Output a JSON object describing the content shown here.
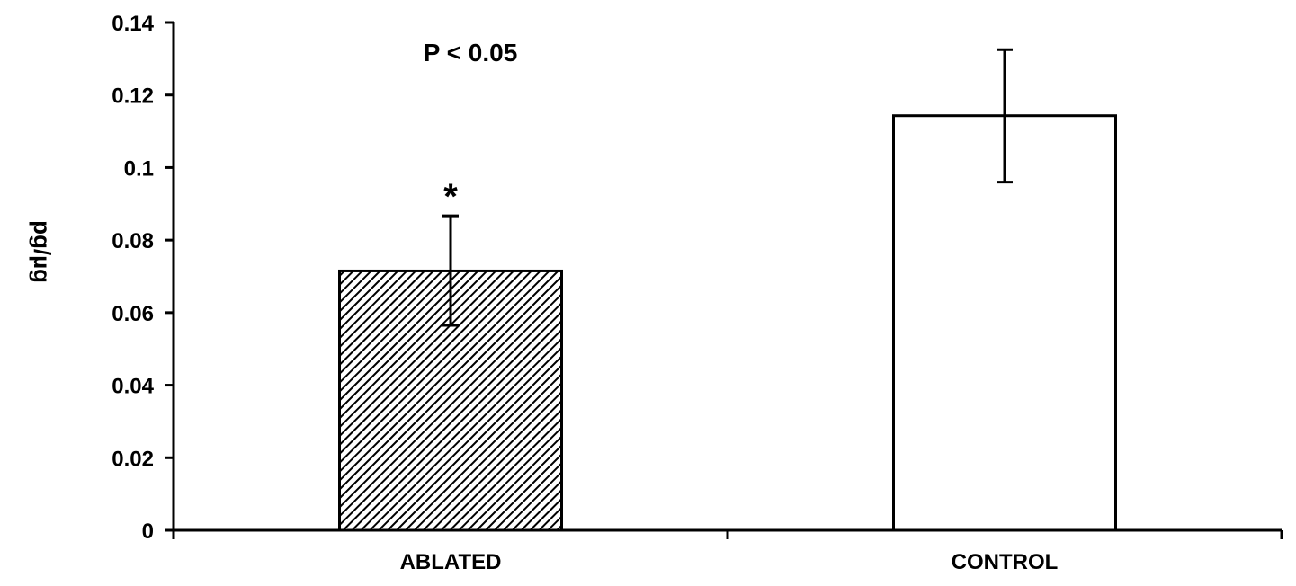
{
  "chart_data": {
    "type": "bar",
    "categories": [
      "ABLATED",
      "CONTROL"
    ],
    "values": [
      0.0715,
      0.1143
    ],
    "error_upper": [
      0.0867,
      0.1325
    ],
    "error_lower": [
      0.0565,
      0.096
    ],
    "bar_fills": [
      "hatched",
      "white"
    ],
    "title": "",
    "xlabel": "",
    "ylabel": "pg/µg",
    "ylim": [
      0,
      0.14
    ],
    "yticks": [
      "0",
      "0.02",
      "0.04",
      "0.06",
      "0.08",
      "0.1",
      "0.12",
      "0.14"
    ],
    "ytick_values": [
      0,
      0.02,
      0.04,
      0.06,
      0.08,
      0.1,
      0.12,
      0.14
    ],
    "grid": false,
    "annotations": {
      "pvalue": "P < 0.05",
      "significance_marker": "*"
    }
  }
}
